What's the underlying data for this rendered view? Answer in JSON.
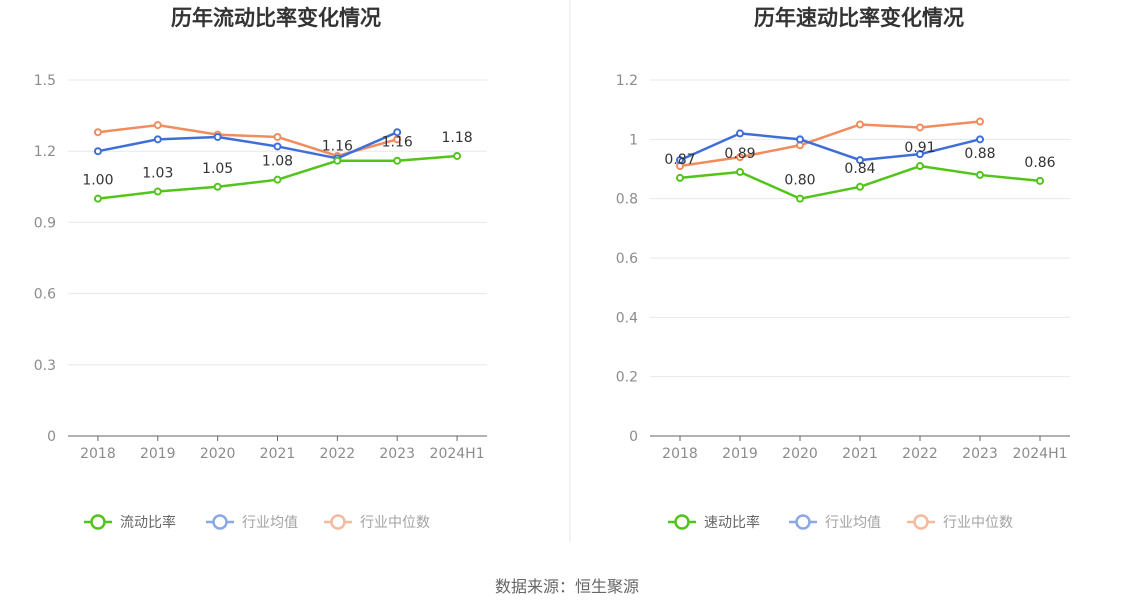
{
  "source": "数据来源：恒生聚源",
  "colors": {
    "company": "#52c41a",
    "industry_avg": "#3e6fd8",
    "industry_median": "#f08c5d",
    "grid": "#e6e8ee",
    "axis": "#666666",
    "divider": "#e6e6e6"
  },
  "chart_data": [
    {
      "type": "line",
      "title": "历年流动比率变化情况",
      "categories": [
        "2018",
        "2019",
        "2020",
        "2021",
        "2022",
        "2023",
        "2024H1"
      ],
      "ylim": [
        0,
        1.5
      ],
      "yticks": [
        "0",
        "0.3",
        "0.6",
        "0.9",
        "1.2",
        "1.5"
      ],
      "ytick_values": [
        0,
        0.3,
        0.6,
        0.9,
        1.2,
        1.5
      ],
      "grid": true,
      "legend_position": "bottom",
      "series": [
        {
          "name": "流动比率",
          "values": [
            1.0,
            1.03,
            1.05,
            1.08,
            1.16,
            1.16,
            1.18
          ],
          "labels": [
            "1.00",
            "1.03",
            "1.05",
            "1.08",
            "1.16",
            "1.16",
            "1.18"
          ]
        },
        {
          "name": "行业均值",
          "values": [
            1.2,
            1.25,
            1.26,
            1.22,
            1.17,
            1.28,
            null
          ]
        },
        {
          "name": "行业中位数",
          "values": [
            1.28,
            1.31,
            1.27,
            1.26,
            1.18,
            1.25,
            null
          ]
        }
      ]
    },
    {
      "type": "line",
      "title": "历年速动比率变化情况",
      "categories": [
        "2018",
        "2019",
        "2020",
        "2021",
        "2022",
        "2023",
        "2024H1"
      ],
      "ylim": [
        0,
        1.2
      ],
      "yticks": [
        "0",
        "0.2",
        "0.4",
        "0.6",
        "0.8",
        "1",
        "1.2"
      ],
      "ytick_values": [
        0,
        0.2,
        0.4,
        0.6,
        0.8,
        1.0,
        1.2
      ],
      "grid": true,
      "legend_position": "bottom",
      "series": [
        {
          "name": "速动比率",
          "values": [
            0.87,
            0.89,
            0.8,
            0.84,
            0.91,
            0.88,
            0.86
          ],
          "labels": [
            "0.87",
            "0.89",
            "0.80",
            "0.84",
            "0.91",
            "0.88",
            "0.86"
          ]
        },
        {
          "name": "行业均值",
          "values": [
            0.93,
            1.02,
            1.0,
            0.93,
            0.95,
            1.0,
            null
          ]
        },
        {
          "name": "行业中位数",
          "values": [
            0.91,
            0.94,
            0.98,
            1.05,
            1.04,
            1.06,
            null
          ]
        }
      ]
    }
  ]
}
